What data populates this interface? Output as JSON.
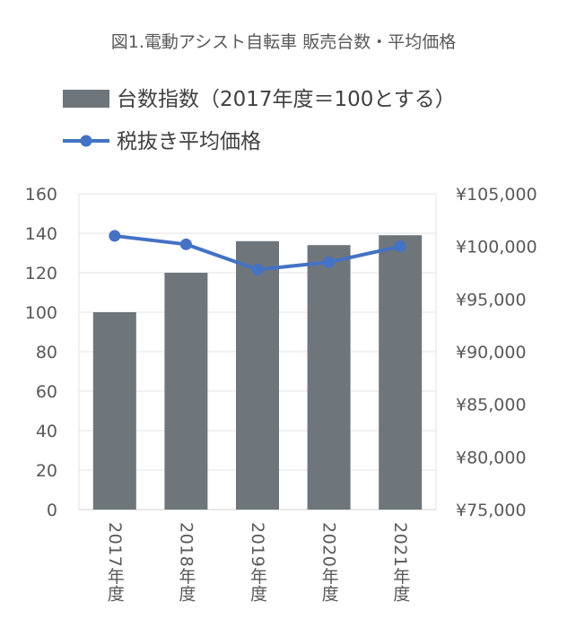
{
  "chart_data": {
    "type": "bar",
    "title": "図1.電動アシスト自転車 販売台数・平均価格",
    "categories": [
      "2017年度",
      "2018年度",
      "2019年度",
      "2020年度",
      "2021年度"
    ],
    "series": [
      {
        "name": "台数指数（2017年度＝100とする）",
        "type": "bar",
        "axis": "left",
        "color": "#6e767c",
        "values": [
          100,
          120,
          136,
          134,
          139
        ]
      },
      {
        "name": "税抜き平均価格",
        "type": "line",
        "axis": "right",
        "color": "#4472c4",
        "values": [
          101000,
          100200,
          97800,
          98500,
          100000
        ]
      }
    ],
    "y_left": {
      "ylim": [
        0,
        160
      ],
      "ticks": [
        0,
        20,
        40,
        60,
        80,
        100,
        120,
        140,
        160
      ],
      "tick_labels": [
        "0",
        "20",
        "40",
        "60",
        "80",
        "100",
        "120",
        "140",
        "160"
      ]
    },
    "y_right": {
      "ylim": [
        75000,
        105000
      ],
      "ticks": [
        75000,
        80000,
        85000,
        90000,
        95000,
        100000,
        105000
      ],
      "tick_labels": [
        "¥75,000",
        "¥80,000",
        "¥85,000",
        "¥90,000",
        "¥95,000",
        "¥100,000",
        "¥105,000"
      ]
    },
    "grid": true,
    "legend_position": "top-left"
  }
}
